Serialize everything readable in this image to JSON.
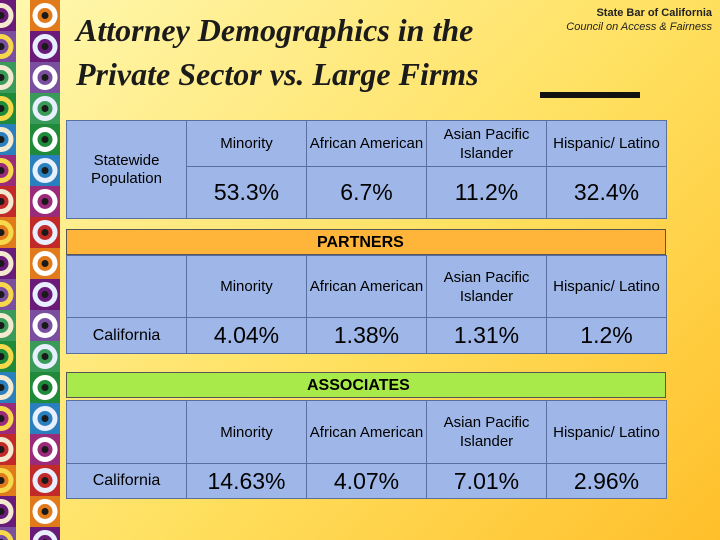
{
  "title": "Attorney Demographics in the Private Sector vs. Large Firms",
  "organization": {
    "name": "State Bar of California",
    "subtitle": "Council on Access & Fairness"
  },
  "columns": [
    "Minority",
    "African American",
    "Asian Pacific Islander",
    "Hispanic/ Latino"
  ],
  "statewide": {
    "row_label": "Statewide Population",
    "values": [
      "53.3%",
      "6.7%",
      "11.2%",
      "32.4%"
    ]
  },
  "partners": {
    "banner": "PARTNERS",
    "row_label": "California",
    "values": [
      "4.04%",
      "1.38%",
      "1.31%",
      "1.2%"
    ]
  },
  "associates": {
    "banner": "ASSOCIATES",
    "row_label": "California",
    "values": [
      "14.63%",
      "4.07%",
      "7.01%",
      "2.96%"
    ]
  },
  "colors": {
    "table_fill": "#9fb7e8",
    "partners_banner": "#ffb53a",
    "associates_banner": "#a8ea4a"
  }
}
